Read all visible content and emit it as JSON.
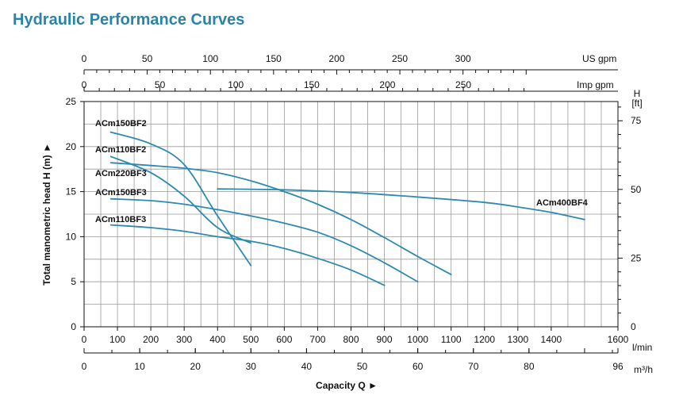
{
  "title": "Hydraulic Performance Curves",
  "colors": {
    "title": "#2a84a8",
    "curve": "#2d8ab0",
    "grid": "#9a9a9a",
    "axis": "#111111"
  },
  "chart_data": {
    "type": "line",
    "xlabel": "Capacity Q ►",
    "ylabel": "Total manometric head H (m) ►",
    "xlim_lmin": [
      0,
      1600
    ],
    "ylim_m": [
      0,
      25
    ],
    "ylim_ft": [
      0,
      82
    ],
    "axes": {
      "lmin": {
        "unit": "l/min",
        "ticks": [
          "0",
          "100",
          "200",
          "300",
          "400",
          "500",
          "600",
          "700",
          "800",
          "900",
          "1000",
          "1100",
          "1200",
          "1300",
          "1400",
          "1600"
        ]
      },
      "m3h": {
        "unit": "m³/h",
        "ticks": [
          "0",
          "10",
          "20",
          "30",
          "40",
          "50",
          "60",
          "70",
          "80",
          "96"
        ]
      },
      "us_gpm": {
        "unit": "US gpm",
        "ticks": [
          "0",
          "50",
          "100",
          "150",
          "200",
          "250",
          "300"
        ]
      },
      "imp_gpm": {
        "unit": "Imp gpm",
        "ticks": [
          "0",
          "50",
          "100",
          "150",
          "200",
          "250"
        ]
      },
      "head_m": {
        "ticks": [
          "0",
          "5",
          "10",
          "15",
          "20",
          "25"
        ]
      },
      "head_ft": {
        "unit_line1": "H",
        "unit_line2": "[ft]",
        "ticks": [
          "0",
          "25",
          "50",
          "75"
        ]
      }
    },
    "series": [
      {
        "name": "ACm150BF2",
        "x": [
          80,
          200,
          300,
          400,
          500
        ],
        "y": [
          21.6,
          20.3,
          18.0,
          12.3,
          6.8
        ]
      },
      {
        "name": "ACm110BF2",
        "x": [
          80,
          200,
          300,
          400,
          500
        ],
        "y": [
          18.9,
          17.1,
          14.5,
          11.0,
          9.3
        ]
      },
      {
        "name": "ACm220BF3",
        "x": [
          80,
          200,
          300,
          400,
          500,
          600,
          700,
          800,
          900,
          1000,
          1100
        ],
        "y": [
          18.2,
          17.9,
          17.6,
          17.1,
          16.2,
          15.0,
          13.6,
          11.9,
          9.9,
          7.8,
          5.8
        ]
      },
      {
        "name": "ACm150BF3",
        "x": [
          80,
          200,
          300,
          400,
          500,
          600,
          700,
          800,
          900,
          1000
        ],
        "y": [
          14.2,
          14.0,
          13.6,
          13.0,
          12.3,
          11.5,
          10.5,
          9.0,
          7.1,
          5.0
        ]
      },
      {
        "name": "ACm110BF3",
        "x": [
          80,
          200,
          300,
          400,
          500,
          600,
          700,
          800,
          900
        ],
        "y": [
          11.3,
          11.0,
          10.6,
          10.0,
          9.5,
          8.7,
          7.6,
          6.3,
          4.6
        ]
      },
      {
        "name": "ACm400BF4",
        "x": [
          400,
          600,
          800,
          1000,
          1200,
          1300,
          1400,
          1500
        ],
        "y": [
          15.3,
          15.2,
          14.9,
          14.4,
          13.8,
          13.3,
          12.7,
          11.9
        ]
      }
    ]
  }
}
